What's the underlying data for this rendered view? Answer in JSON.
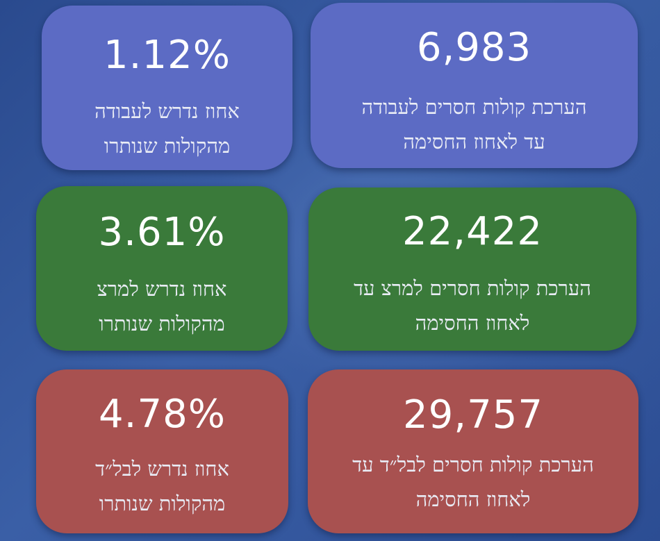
{
  "colors": {
    "blue": "#5c6bc4",
    "green": "#3a7a3a",
    "red": "#a85150",
    "background": "#2f4f92"
  },
  "cards": {
    "labor_votes": {
      "value": "6,983",
      "line1": "הערכת קולות חסרים לעבודה",
      "line2": "עד לאחוז החסימה"
    },
    "labor_pct": {
      "value": "1.12%",
      "line1": "אחוז נדרש לעבודה",
      "line2": "מהקולות שנותרו"
    },
    "meretz_votes": {
      "value": "22,422",
      "line1": "הערכת קולות חסרים למרצ עד",
      "line2": "לאחוז החסימה"
    },
    "meretz_pct": {
      "value": "3.61%",
      "line1": "אחוז נדרש למרצ",
      "line2": "מהקולות שנותרו"
    },
    "balad_votes": {
      "value": "29,757",
      "line1": "הערכת קולות חסרים לבל״ד עד",
      "line2": "לאחוז החסימה"
    },
    "balad_pct": {
      "value": "4.78%",
      "line1": "אחוז נדרש לבל״ד",
      "line2": "מהקולות שנותרו"
    }
  }
}
